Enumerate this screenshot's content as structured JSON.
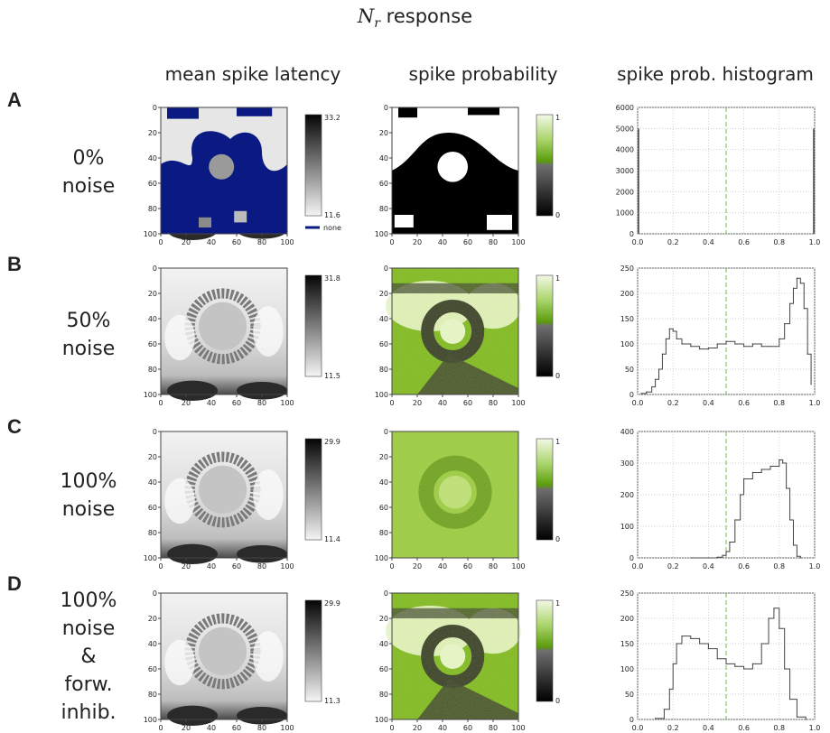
{
  "title": {
    "var": "N",
    "sub": "r",
    "text": " response"
  },
  "columns": {
    "latency": "mean spike latency",
    "probability": "spike probability",
    "histogram": "spike prob. histogram"
  },
  "map_ticks": [
    "0",
    "20",
    "40",
    "60",
    "80",
    "100"
  ],
  "prob_colorbar": {
    "top": "1",
    "bottom": "0"
  },
  "none_label": "none",
  "colors": {
    "none": "#0a1a82",
    "green": "#5a9c0a",
    "light_green": "#e9f4cf",
    "hist_line": "#444444",
    "median_line": "#6dbf4b"
  },
  "rows": [
    {
      "letter": "A",
      "noise": [
        "0%",
        "noise"
      ],
      "latency_max": "33.2",
      "latency_min": "11.6",
      "show_none": true
    },
    {
      "letter": "B",
      "noise": [
        "50%",
        "noise"
      ],
      "latency_max": "31.8",
      "latency_min": "11.5",
      "show_none": false
    },
    {
      "letter": "C",
      "noise": [
        "100%",
        "noise"
      ],
      "latency_max": "29.9",
      "latency_min": "11.4",
      "show_none": false
    },
    {
      "letter": "D",
      "noise": [
        "100%",
        "noise",
        "&",
        "forw.",
        "inhib."
      ],
      "latency_max": "29.9",
      "latency_min": "11.3",
      "show_none": false
    }
  ],
  "chart_data": [
    {
      "type": "bar",
      "title": "",
      "xlabel": "",
      "ylabel": "",
      "xlim": [
        0,
        1
      ],
      "ylim": [
        0,
        6000
      ],
      "grid": true,
      "reference_line_x": 0.5,
      "x_ticks": [
        "0.0",
        "0.2",
        "0.4",
        "0.6",
        "0.8",
        "1.0"
      ],
      "y_ticks": [
        "0",
        "1000",
        "2000",
        "3000",
        "4000",
        "5000",
        "6000"
      ],
      "x": [
        0.0,
        1.0
      ],
      "values": [
        5000,
        5000
      ]
    },
    {
      "type": "line",
      "title": "",
      "xlabel": "",
      "ylabel": "",
      "xlim": [
        0,
        1
      ],
      "ylim": [
        0,
        250
      ],
      "grid": true,
      "reference_line_x": 0.5,
      "x_ticks": [
        "0.0",
        "0.2",
        "0.4",
        "0.6",
        "0.8",
        "1.0"
      ],
      "y_ticks": [
        "0",
        "50",
        "100",
        "150",
        "200",
        "250"
      ],
      "x": [
        0.02,
        0.05,
        0.08,
        0.1,
        0.12,
        0.14,
        0.16,
        0.18,
        0.2,
        0.22,
        0.25,
        0.3,
        0.35,
        0.4,
        0.45,
        0.5,
        0.55,
        0.6,
        0.65,
        0.7,
        0.75,
        0.8,
        0.83,
        0.86,
        0.88,
        0.9,
        0.92,
        0.94,
        0.96,
        0.98
      ],
      "values": [
        2,
        5,
        15,
        30,
        50,
        80,
        110,
        130,
        125,
        110,
        100,
        95,
        90,
        92,
        100,
        105,
        100,
        95,
        100,
        95,
        95,
        110,
        140,
        180,
        210,
        230,
        220,
        170,
        80,
        20
      ]
    },
    {
      "type": "line",
      "title": "",
      "xlabel": "",
      "ylabel": "",
      "xlim": [
        0,
        1
      ],
      "ylim": [
        0,
        400
      ],
      "grid": true,
      "reference_line_x": 0.5,
      "x_ticks": [
        "0.0",
        "0.2",
        "0.4",
        "0.6",
        "0.8",
        "1.0"
      ],
      "y_ticks": [
        "0",
        "100",
        "200",
        "300",
        "400"
      ],
      "x": [
        0.3,
        0.4,
        0.45,
        0.48,
        0.5,
        0.52,
        0.55,
        0.58,
        0.6,
        0.65,
        0.7,
        0.75,
        0.8,
        0.82,
        0.84,
        0.86,
        0.88,
        0.9,
        0.92
      ],
      "values": [
        0,
        0,
        2,
        8,
        20,
        50,
        120,
        200,
        250,
        270,
        280,
        290,
        310,
        300,
        220,
        120,
        40,
        5,
        0
      ]
    },
    {
      "type": "line",
      "title": "",
      "xlabel": "",
      "ylabel": "",
      "xlim": [
        0,
        1
      ],
      "ylim": [
        0,
        250
      ],
      "grid": true,
      "reference_line_x": 0.5,
      "x_ticks": [
        "0.0",
        "0.2",
        "0.4",
        "0.6",
        "0.8",
        "1.0"
      ],
      "y_ticks": [
        "0",
        "50",
        "100",
        "150",
        "200",
        "250"
      ],
      "x": [
        0.1,
        0.15,
        0.18,
        0.2,
        0.22,
        0.25,
        0.3,
        0.35,
        0.4,
        0.45,
        0.5,
        0.55,
        0.6,
        0.65,
        0.7,
        0.74,
        0.77,
        0.8,
        0.83,
        0.86,
        0.9,
        0.95
      ],
      "values": [
        2,
        20,
        60,
        110,
        150,
        165,
        160,
        150,
        140,
        120,
        110,
        105,
        100,
        110,
        150,
        200,
        220,
        180,
        100,
        40,
        5,
        0
      ]
    }
  ]
}
